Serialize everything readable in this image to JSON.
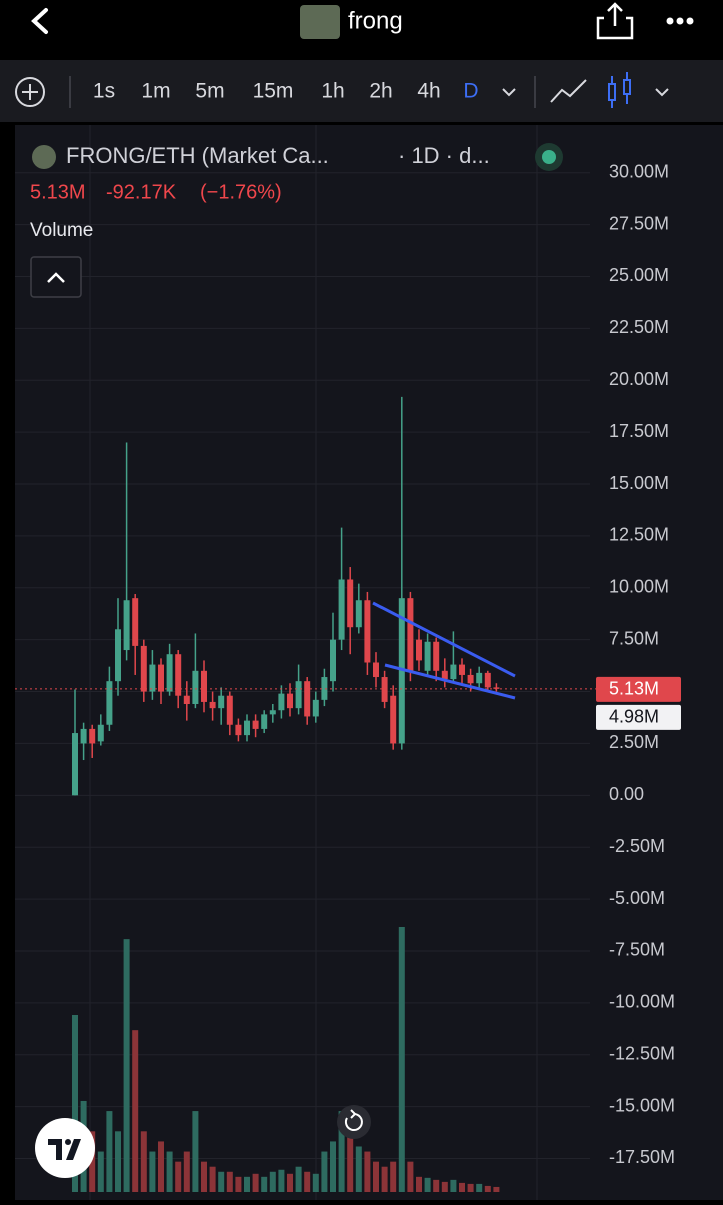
{
  "header": {
    "title": "frong"
  },
  "toolbar": {
    "intervals": [
      "1s",
      "1m",
      "5m",
      "15m",
      "1h",
      "2h",
      "4h",
      "D"
    ]
  },
  "legend": {
    "symbol": "FRONG/ETH (Market Ca...",
    "meta": "· 1D · d...",
    "value": "5.13M",
    "change": "-92.17K",
    "change_pct": "(−1.76%)",
    "study": "Volume"
  },
  "chart_data": {
    "type": "candlestick",
    "up_color": "#45a28a",
    "down_color": "#e0474c",
    "volume_up_color": "#2e6b60",
    "volume_down_color": "#8c3438",
    "open": [
      0,
      2.5,
      3.2,
      2.6,
      3.4,
      5.5,
      7,
      9.5,
      7.2,
      5,
      6.3,
      5,
      6.8,
      4.8,
      4.4,
      6,
      4.5,
      4.2,
      4.8,
      3.4,
      2.9,
      3.6,
      3.2,
      3.9,
      4.1,
      4.9,
      4.2,
      5.5,
      3.8,
      4.6,
      5.5,
      7.5,
      10.4,
      8.1,
      9.4,
      6.4,
      5.7,
      4.8,
      2.5,
      9.5,
      7.5,
      6,
      7.4,
      6,
      5.6,
      6.3,
      5.8,
      5.4,
      5.9,
      5.2
    ],
    "high": [
      5.1,
      3.5,
      3.4,
      3.9,
      6.2,
      9.5,
      17,
      9.7,
      7.5,
      7,
      6.6,
      7.3,
      7,
      5.5,
      7.8,
      6.5,
      5,
      5.2,
      5,
      3.7,
      3.9,
      3.9,
      4.1,
      4.4,
      5.3,
      5.4,
      6.3,
      5.7,
      5,
      6.1,
      8.8,
      12.9,
      11,
      10.2,
      9.8,
      6.9,
      6,
      5.3,
      19.2,
      9.8,
      8,
      7.8,
      7.6,
      6.6,
      7.9,
      6.6,
      6.1,
      6.2,
      6,
      5.4
    ],
    "low": [
      0,
      1.7,
      1.8,
      2.4,
      3.1,
      4.8,
      6.5,
      5.8,
      4.5,
      4.6,
      4.4,
      4.8,
      4.2,
      3.6,
      4.2,
      4,
      3.6,
      3.4,
      2.9,
      2.6,
      2.6,
      2.8,
      3,
      3.5,
      3.7,
      3.8,
      3.9,
      3.4,
      3.5,
      4.3,
      5,
      7,
      6.8,
      7.8,
      5.8,
      5.2,
      4.2,
      2.2,
      2.2,
      5.5,
      6,
      5.8,
      5.5,
      5.2,
      5.4,
      5.3,
      5,
      5.2,
      5,
      5
    ],
    "close": [
      3,
      3.2,
      2.5,
      3.4,
      5.5,
      8,
      9.4,
      7.2,
      5,
      6.3,
      5,
      6.8,
      4.8,
      4.4,
      6,
      4.5,
      4.2,
      4.8,
      3.4,
      2.9,
      3.6,
      3.2,
      3.9,
      4.1,
      4.9,
      4.2,
      5.5,
      3.8,
      4.6,
      5.7,
      7.5,
      10.4,
      8.1,
      9.4,
      6.4,
      5.7,
      4.5,
      2.5,
      9.5,
      6,
      6.5,
      7.4,
      6,
      5.6,
      6.3,
      5.8,
      5.4,
      5.9,
      5.2,
      5.13
    ],
    "volume": [
      175,
      90,
      60,
      40,
      80,
      60,
      250,
      160,
      60,
      40,
      50,
      40,
      30,
      40,
      80,
      30,
      25,
      20,
      20,
      15,
      15,
      18,
      15,
      20,
      22,
      18,
      25,
      20,
      18,
      40,
      50,
      80,
      70,
      45,
      40,
      30,
      25,
      30,
      262,
      30,
      15,
      14,
      12,
      10,
      12,
      9,
      8,
      8,
      6,
      5
    ],
    "ylim": [
      -19.5,
      32.3
    ],
    "yticks": [
      {
        "value": 30,
        "label": "30.00M"
      },
      {
        "value": 27.5,
        "label": "27.50M"
      },
      {
        "value": 25,
        "label": "25.00M"
      },
      {
        "value": 22.5,
        "label": "22.50M"
      },
      {
        "value": 20,
        "label": "20.00M"
      },
      {
        "value": 17.5,
        "label": "17.50M"
      },
      {
        "value": 15,
        "label": "15.00M"
      },
      {
        "value": 12.5,
        "label": "12.50M"
      },
      {
        "value": 10,
        "label": "10.00M"
      },
      {
        "value": 7.5,
        "label": "7.50M"
      },
      {
        "value": 5,
        "label": "5.00M"
      },
      {
        "value": 2.5,
        "label": "2.50M"
      },
      {
        "value": 0,
        "label": "0.00"
      },
      {
        "value": -2.5,
        "label": "-2.50M"
      },
      {
        "value": -5,
        "label": "-5.00M"
      },
      {
        "value": -7.5,
        "label": "-7.50M"
      },
      {
        "value": -10,
        "label": "-10.00M"
      },
      {
        "value": -12.5,
        "label": "-12.50M"
      },
      {
        "value": -15,
        "label": "-15.00M"
      },
      {
        "value": -17.5,
        "label": "-17.50M"
      }
    ],
    "last_price": {
      "value": 5.13,
      "label": "5.13M"
    },
    "crosshair_price": {
      "value": 4.98,
      "label": "4.98M"
    }
  }
}
